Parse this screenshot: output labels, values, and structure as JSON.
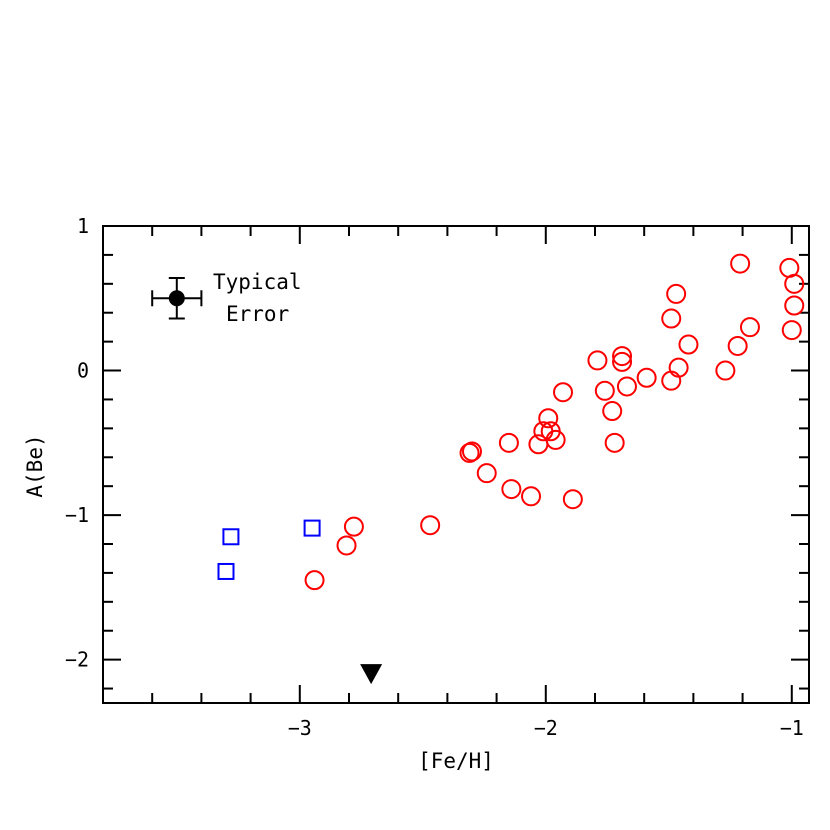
{
  "chart_data": {
    "type": "scatter",
    "title": "",
    "xlabel": "[Fe/H]",
    "ylabel": "A(Be)",
    "xlim": [
      -3.8,
      -0.93
    ],
    "ylim": [
      -2.3,
      1.0
    ],
    "xticks": [
      {
        "value": -3,
        "label": "−3"
      },
      {
        "value": -2,
        "label": "−2"
      },
      {
        "value": -1,
        "label": "−1"
      }
    ],
    "yticks": [
      {
        "value": 1,
        "label": "1"
      },
      {
        "value": 0,
        "label": "0"
      },
      {
        "value": -1,
        "label": "−1"
      },
      {
        "value": -2,
        "label": "−2"
      }
    ],
    "x_minor_step": 0.2,
    "y_minor_step": 0.2,
    "legend": {
      "text_line1": "Typical",
      "text_line2": "Error",
      "x": -3.5,
      "y": 0.5,
      "xerr": 0.1,
      "yerr": 0.14
    },
    "series": [
      {
        "name": "red-circles",
        "marker": "circle",
        "color": "#ff0000",
        "points": [
          [
            -2.94,
            -1.45
          ],
          [
            -2.78,
            -1.08
          ],
          [
            -2.81,
            -1.21
          ],
          [
            -2.47,
            -1.07
          ],
          [
            -2.31,
            -0.57
          ],
          [
            -2.3,
            -0.56
          ],
          [
            -2.24,
            -0.71
          ],
          [
            -2.15,
            -0.5
          ],
          [
            -2.14,
            -0.82
          ],
          [
            -2.06,
            -0.87
          ],
          [
            -2.03,
            -0.51
          ],
          [
            -2.01,
            -0.42
          ],
          [
            -1.99,
            -0.33
          ],
          [
            -1.98,
            -0.42
          ],
          [
            -1.96,
            -0.48
          ],
          [
            -1.93,
            -0.15
          ],
          [
            -1.89,
            -0.89
          ],
          [
            -1.79,
            0.07
          ],
          [
            -1.76,
            -0.14
          ],
          [
            -1.73,
            -0.28
          ],
          [
            -1.72,
            -0.5
          ],
          [
            -1.69,
            0.1
          ],
          [
            -1.69,
            0.06
          ],
          [
            -1.67,
            -0.11
          ],
          [
            -1.59,
            -0.05
          ],
          [
            -1.49,
            0.36
          ],
          [
            -1.49,
            -0.07
          ],
          [
            -1.47,
            0.53
          ],
          [
            -1.46,
            0.02
          ],
          [
            -1.42,
            0.18
          ],
          [
            -1.27,
            0.0
          ],
          [
            -1.22,
            0.17
          ],
          [
            -1.21,
            0.74
          ],
          [
            -1.17,
            0.3
          ],
          [
            -1.01,
            0.71
          ],
          [
            -0.99,
            0.6
          ],
          [
            -0.99,
            0.45
          ],
          [
            -1.0,
            0.28
          ]
        ]
      },
      {
        "name": "blue-squares",
        "marker": "square",
        "color": "#0000ff",
        "points": [
          [
            -3.28,
            -1.15
          ],
          [
            -3.3,
            -1.39
          ],
          [
            -2.95,
            -1.09
          ]
        ]
      },
      {
        "name": "upper-limit",
        "marker": "triangle-down",
        "color": "#000000",
        "points": [
          [
            -2.71,
            -2.1
          ]
        ]
      }
    ]
  }
}
